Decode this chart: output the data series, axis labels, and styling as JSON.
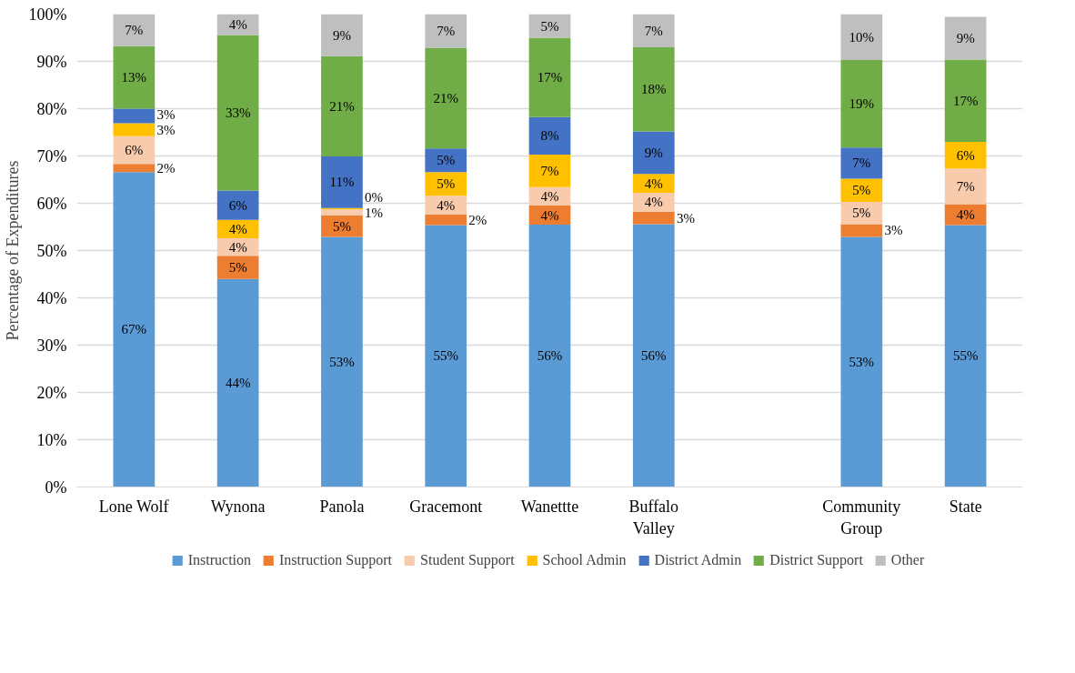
{
  "chart_data": {
    "type": "bar",
    "stacked": true,
    "ylabel": "Percentage of Expenditures",
    "categories": [
      "Lone Wolf",
      "Wynona",
      "Panola",
      "Gracemont",
      "Wanettte",
      "Buffalo Valley",
      null,
      "Community Group",
      "State"
    ],
    "ylim": [
      0,
      100
    ],
    "yticks": [
      {
        "value": 0,
        "label": "0%"
      },
      {
        "value": 10,
        "label": "10%"
      },
      {
        "value": 20,
        "label": "20%"
      },
      {
        "value": 30,
        "label": "30%"
      },
      {
        "value": 40,
        "label": "40%"
      },
      {
        "value": 50,
        "label": "50%"
      },
      {
        "value": 60,
        "label": "60%"
      },
      {
        "value": 70,
        "label": "70%"
      },
      {
        "value": 80,
        "label": "80%"
      },
      {
        "value": 90,
        "label": "90%"
      },
      {
        "value": 100,
        "label": "100%"
      }
    ],
    "grid": "y",
    "legend": "bottom",
    "series": [
      {
        "name": "Instruction",
        "color": "#5b9bd5",
        "values": [
          66.6,
          44.0,
          52.9,
          55.4,
          55.5,
          55.6,
          null,
          52.9,
          55.4
        ],
        "value_labels": [
          "67%",
          "44%",
          "53%",
          "55%",
          "56%",
          "56%",
          null,
          "53%",
          "55%"
        ]
      },
      {
        "name": "Instruction Support",
        "color": "#ed7d31",
        "values": [
          1.7,
          4.9,
          4.5,
          2.2,
          4.0,
          2.6,
          null,
          2.7,
          4.4
        ],
        "value_labels": [
          "2%",
          "5%",
          "5%",
          "2%",
          "4%",
          "3%",
          null,
          "3%",
          "4%"
        ]
      },
      {
        "name": "Student Support",
        "color": "#f8cbad",
        "values": [
          5.9,
          3.7,
          1.3,
          4.0,
          3.9,
          4.0,
          null,
          4.7,
          7.5
        ],
        "value_labels": [
          "6%",
          "4%",
          "1%",
          "4%",
          "4%",
          "4%",
          null,
          "5%",
          "7%"
        ]
      },
      {
        "name": "School Admin",
        "color": "#ffc000",
        "values": [
          2.7,
          3.9,
          0.3,
          5.0,
          6.9,
          4.0,
          null,
          4.9,
          5.7
        ],
        "value_labels": [
          "3%",
          "4%",
          "0%",
          "5%",
          "7%",
          "4%",
          null,
          "5%",
          "6%"
        ]
      },
      {
        "name": "District Admin",
        "color": "#4472c4",
        "values": [
          3.1,
          6.2,
          10.9,
          5.0,
          7.9,
          9.0,
          null,
          6.6,
          0
        ],
        "value_labels": [
          "3%",
          "6%",
          "11%",
          "5%",
          "8%",
          "9%",
          null,
          "7%",
          null
        ]
      },
      {
        "name": "District Support",
        "color": "#70ad47",
        "values": [
          13.2,
          32.9,
          21.2,
          21.3,
          16.8,
          17.8,
          null,
          18.5,
          17.4
        ],
        "value_labels": [
          "13%",
          "33%",
          "21%",
          "21%",
          "17%",
          "18%",
          null,
          "19%",
          "17%"
        ]
      },
      {
        "name": "Other",
        "color": "#bfbfbf",
        "values": [
          6.8,
          4.4,
          8.9,
          7.1,
          5.0,
          7.0,
          null,
          9.7,
          9.0
        ],
        "value_labels": [
          "7%",
          "4%",
          "9%",
          "7%",
          "5%",
          "7%",
          null,
          "10%",
          "9%"
        ]
      }
    ]
  }
}
